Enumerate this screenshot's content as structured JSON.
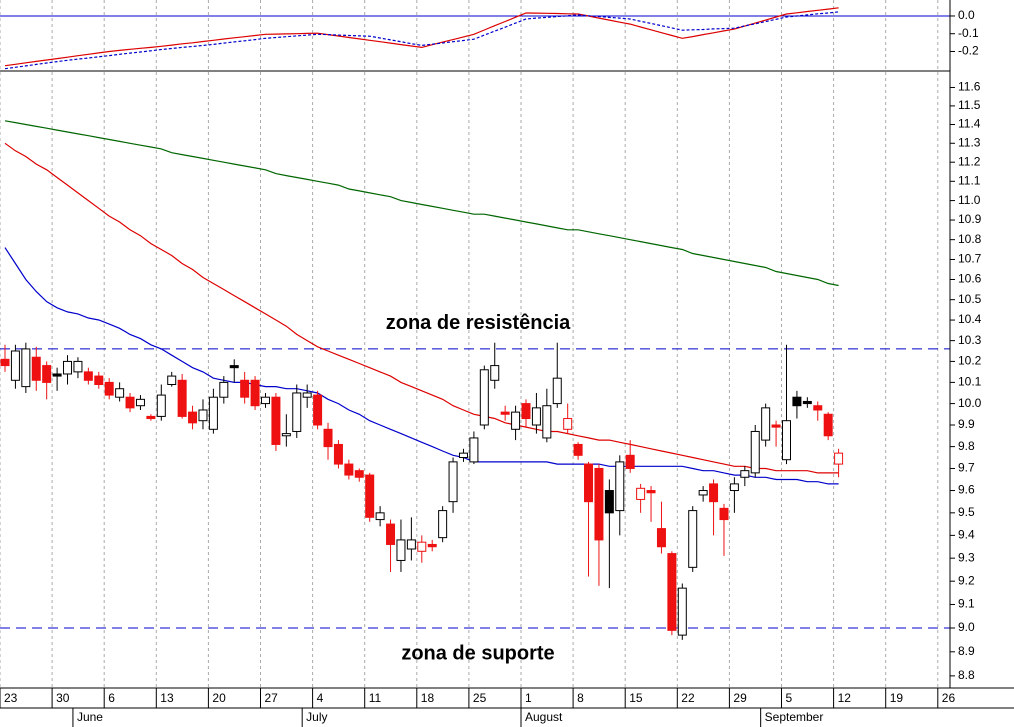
{
  "chart_data": [
    {
      "type": "line",
      "ylim": [
        -0.31,
        0.09
      ],
      "yticks": [
        {
          "value": 0,
          "label": "0.0"
        },
        -0.1,
        -0.2
      ],
      "hlines": [
        {
          "value": 0,
          "color": "#0000cc",
          "dash": false
        }
      ],
      "series": [
        {
          "color": "#dd0000",
          "dash": false,
          "values": [
            -0.28,
            -0.272,
            -0.264,
            -0.256,
            -0.248,
            -0.24,
            -0.232,
            -0.224,
            -0.216,
            -0.208,
            -0.2,
            -0.194,
            -0.188,
            -0.182,
            -0.177,
            -0.171,
            -0.164,
            -0.157,
            -0.151,
            -0.144,
            -0.137,
            -0.13,
            -0.123,
            -0.117,
            -0.11,
            -0.103,
            -0.102,
            -0.101,
            -0.1,
            -0.098,
            -0.097,
            -0.105,
            -0.113,
            -0.121,
            -0.129,
            -0.137,
            -0.145,
            -0.153,
            -0.161,
            -0.169,
            -0.177,
            -0.162,
            -0.147,
            -0.133,
            -0.118,
            -0.103,
            -0.079,
            -0.055,
            -0.031,
            -0.007,
            0.017,
            0.016,
            0.015,
            0.014,
            0.012,
            0.011,
            0.0,
            -0.012,
            -0.023,
            -0.035,
            -0.046,
            -0.062,
            -0.078,
            -0.094,
            -0.11,
            -0.126,
            -0.116,
            -0.105,
            -0.095,
            -0.084,
            -0.074,
            -0.057,
            -0.04,
            -0.023,
            -0.006,
            0.011,
            0.018,
            0.025,
            0.032,
            0.039,
            0.046,
            null,
            null,
            null,
            null,
            null,
            null,
            null,
            null,
            null,
            null
          ]
        },
        {
          "color": "#0000cc",
          "dash": true,
          "values": [
            -0.297,
            -0.289,
            -0.281,
            -0.273,
            -0.265,
            -0.257,
            -0.25,
            -0.243,
            -0.237,
            -0.23,
            -0.223,
            -0.216,
            -0.209,
            -0.203,
            -0.196,
            -0.189,
            -0.183,
            -0.177,
            -0.172,
            -0.166,
            -0.16,
            -0.153,
            -0.146,
            -0.14,
            -0.133,
            -0.126,
            -0.121,
            -0.117,
            -0.112,
            -0.108,
            -0.103,
            -0.105,
            -0.108,
            -0.11,
            -0.112,
            -0.114,
            -0.124,
            -0.135,
            -0.145,
            -0.156,
            -0.166,
            -0.159,
            -0.152,
            -0.145,
            -0.138,
            -0.131,
            -0.108,
            -0.085,
            -0.063,
            -0.04,
            -0.017,
            -0.012,
            -0.008,
            -0.003,
            0.001,
            0.006,
            0.001,
            -0.003,
            -0.008,
            -0.012,
            -0.017,
            -0.03,
            -0.042,
            -0.055,
            -0.067,
            -0.08,
            -0.078,
            -0.076,
            -0.073,
            -0.071,
            -0.069,
            -0.056,
            -0.044,
            -0.031,
            -0.019,
            -0.006,
            0,
            0.006,
            0.012,
            0.017,
            0.023,
            null,
            null,
            null,
            null,
            null,
            null,
            null,
            null,
            null,
            null
          ]
        }
      ]
    },
    {
      "type": "candlestick",
      "log_scale": true,
      "grid": true,
      "ylim": [
        8.75,
        11.69
      ],
      "yticks": [
        8.8,
        8.9,
        {
          "value": 9,
          "label": "9.0"
        },
        9.1,
        9.2,
        9.3,
        9.4,
        9.5,
        9.6,
        9.7,
        9.8,
        9.9,
        {
          "value": 10,
          "label": "10.0"
        },
        10.1,
        10.2,
        10.3,
        10.4,
        10.5,
        10.6,
        10.7,
        10.8,
        10.9,
        {
          "value": 11,
          "label": "11.0"
        },
        11.1,
        11.2,
        11.3,
        11.4,
        11.5,
        11.6
      ],
      "categories": [
        "23",
        null,
        null,
        null,
        null,
        "30",
        null,
        null,
        null,
        null,
        "6",
        null,
        null,
        null,
        null,
        "13",
        null,
        null,
        null,
        null,
        "20",
        null,
        null,
        null,
        null,
        "27",
        null,
        null,
        null,
        null,
        "4",
        null,
        null,
        null,
        null,
        "11",
        null,
        null,
        null,
        null,
        "18",
        null,
        null,
        null,
        null,
        "25",
        null,
        null,
        null,
        null,
        "1",
        null,
        null,
        null,
        null,
        "8",
        null,
        null,
        null,
        null,
        "15",
        null,
        null,
        null,
        null,
        "22",
        null,
        null,
        null,
        null,
        "29",
        null,
        null,
        null,
        null,
        "5",
        null,
        null,
        null,
        null,
        "12",
        null,
        null,
        null,
        null,
        "19",
        null,
        null,
        null,
        null,
        "26"
      ],
      "months": [
        null,
        null,
        null,
        null,
        null,
        null,
        null,
        "June",
        null,
        null,
        null,
        null,
        null,
        null,
        null,
        null,
        null,
        null,
        null,
        null,
        null,
        null,
        null,
        null,
        null,
        null,
        null,
        null,
        null,
        "July",
        null,
        null,
        null,
        null,
        null,
        null,
        null,
        null,
        null,
        null,
        null,
        null,
        null,
        null,
        null,
        null,
        null,
        null,
        null,
        null,
        "August",
        null,
        null,
        null,
        null,
        null,
        null,
        null,
        null,
        null,
        null,
        null,
        null,
        null,
        null,
        null,
        null,
        null,
        null,
        null,
        null,
        null,
        null,
        "September",
        null,
        null,
        null,
        null,
        null,
        null,
        null,
        null,
        null,
        null,
        null,
        null,
        null,
        null,
        null,
        null,
        null
      ],
      "open": [
        10.21,
        10.11,
        10.08,
        10.22,
        10.18,
        10.14,
        10.14,
        10.15,
        10.15,
        10.13,
        10.1,
        10.03,
        10.03,
        9.99,
        9.94,
        9.94,
        10.09,
        10.11,
        9.96,
        9.92,
        9.88,
        10.03,
        10.18,
        10.11,
        10.11,
        10.0,
        10.03,
        9.85,
        9.87,
        10.03,
        10.04,
        9.88,
        9.81,
        9.72,
        9.69,
        9.67,
        9.47,
        9.45,
        9.29,
        9.34,
        9.33,
        9.36,
        9.39,
        9.55,
        9.75,
        9.73,
        9.9,
        10.11,
        9.96,
        9.88,
        10.0,
        9.9,
        9.84,
        10.0,
        9.88,
        9.81,
        9.72,
        9.7,
        9.6,
        9.51,
        9.76,
        9.56,
        9.6,
        9.43,
        9.32,
        8.97,
        9.26,
        9.58,
        9.63,
        9.52,
        9.6,
        9.66,
        9.68,
        9.83,
        9.9,
        9.74,
        10.03,
        10.01,
        9.99,
        9.95,
        9.72,
        null,
        null,
        null,
        null,
        null,
        null,
        null,
        null,
        null,
        null
      ],
      "high": [
        10.28,
        10.28,
        10.29,
        10.27,
        10.2,
        10.17,
        10.23,
        10.22,
        10.17,
        10.15,
        10.12,
        10.1,
        10.05,
        10.04,
        9.95,
        10.09,
        10.15,
        10.14,
        9.99,
        10.02,
        10.07,
        10.13,
        10.21,
        10.15,
        10.13,
        10.05,
        10.05,
        9.95,
        10.09,
        10.09,
        10.06,
        9.91,
        9.83,
        9.74,
        9.7,
        9.68,
        9.53,
        9.47,
        9.47,
        9.48,
        9.4,
        9.38,
        9.53,
        9.75,
        9.79,
        9.87,
        10.18,
        10.29,
        9.99,
        9.99,
        10.02,
        10.05,
        10.07,
        10.29,
        10.0,
        9.82,
        9.73,
        9.72,
        9.65,
        9.76,
        9.83,
        9.63,
        9.62,
        9.55,
        9.33,
        9.19,
        9.53,
        9.62,
        9.65,
        9.54,
        9.66,
        9.71,
        9.9,
        10.0,
        9.92,
        10.28,
        10.06,
        10.03,
        10.01,
        9.96,
        9.79,
        null,
        null,
        null,
        null,
        null,
        null,
        null,
        null,
        null,
        null
      ],
      "low": [
        10.15,
        10.07,
        10.05,
        10.06,
        10.02,
        10.06,
        10.09,
        10.12,
        10.09,
        10.07,
        10.02,
        10.01,
        9.96,
        9.97,
        9.92,
        9.92,
        10.08,
        9.93,
        9.88,
        9.88,
        9.86,
        10.0,
        10.1,
        10.0,
        9.97,
        9.98,
        9.78,
        9.8,
        9.84,
        9.98,
        9.88,
        9.74,
        9.7,
        9.65,
        9.64,
        9.46,
        9.44,
        9.24,
        9.24,
        9.29,
        9.28,
        9.33,
        9.37,
        9.5,
        9.73,
        9.72,
        9.88,
        10.07,
        9.92,
        9.83,
        9.89,
        9.86,
        9.82,
        9.98,
        9.86,
        9.74,
        9.22,
        9.18,
        9.17,
        9.4,
        9.68,
        9.5,
        9.46,
        9.32,
        8.97,
        8.95,
        9.24,
        9.55,
        9.4,
        9.31,
        9.5,
        9.62,
        9.66,
        9.8,
        9.8,
        9.72,
        9.93,
        9.98,
        9.92,
        9.83,
        9.66,
        null,
        null,
        null,
        null,
        null,
        null,
        null,
        null,
        null,
        null
      ],
      "close": [
        10.18,
        10.25,
        10.26,
        10.11,
        10.1,
        10.13,
        10.2,
        10.2,
        10.11,
        10.09,
        10.04,
        10.07,
        9.98,
        10.02,
        9.93,
        10.04,
        10.13,
        9.94,
        9.91,
        9.97,
        10.03,
        10.1,
        10.17,
        10.03,
        9.99,
        10.03,
        9.81,
        9.86,
        10.05,
        10.05,
        9.9,
        9.8,
        9.72,
        9.67,
        9.66,
        9.48,
        9.5,
        9.36,
        9.38,
        9.38,
        9.37,
        9.35,
        9.51,
        9.73,
        9.77,
        9.84,
        10.16,
        10.18,
        9.95,
        9.96,
        9.93,
        9.98,
        9.99,
        10.12,
        9.93,
        9.76,
        9.55,
        9.38,
        9.5,
        9.73,
        9.7,
        9.61,
        9.59,
        9.35,
        8.99,
        9.17,
        9.51,
        9.6,
        9.55,
        9.47,
        9.63,
        9.69,
        9.87,
        9.98,
        9.89,
        9.92,
        9.99,
        10.0,
        9.97,
        9.85,
        9.77,
        null,
        null,
        null,
        null,
        null,
        null,
        null,
        null,
        null,
        null
      ],
      "down_color": "#ee1111",
      "up_color": "#000000",
      "hollow_fill": "#ffffff",
      "series": [
        {
          "color": "#0000cc",
          "values": [
            10.76,
            10.68,
            10.6,
            10.54,
            10.49,
            10.46,
            10.44,
            10.43,
            10.41,
            10.4,
            10.38,
            10.36,
            10.33,
            10.31,
            10.28,
            10.26,
            10.23,
            10.2,
            10.17,
            10.15,
            10.12,
            10.11,
            10.1,
            10.1,
            10.09,
            10.08,
            10.08,
            10.07,
            10.07,
            10.06,
            10.05,
            10.02,
            10.0,
            9.97,
            9.95,
            9.92,
            9.9,
            9.88,
            9.86,
            9.84,
            9.82,
            9.8,
            9.78,
            9.76,
            9.75,
            9.73,
            9.73,
            9.73,
            9.73,
            9.73,
            9.73,
            9.73,
            9.73,
            9.72,
            9.72,
            9.72,
            9.72,
            9.72,
            9.71,
            9.71,
            9.71,
            9.71,
            9.71,
            9.71,
            9.71,
            9.71,
            9.7,
            9.69,
            9.69,
            9.68,
            9.67,
            9.67,
            9.66,
            9.66,
            9.65,
            9.65,
            9.65,
            9.64,
            9.64,
            9.63,
            9.63,
            null,
            null,
            null,
            null,
            null,
            null,
            null,
            null,
            null,
            null
          ]
        },
        {
          "color": "#dd0000",
          "values": [
            11.3,
            11.26,
            11.23,
            11.19,
            11.16,
            11.12,
            11.08,
            11.04,
            11.0,
            10.96,
            10.92,
            10.89,
            10.85,
            10.82,
            10.78,
            10.75,
            10.72,
            10.68,
            10.65,
            10.61,
            10.58,
            10.55,
            10.52,
            10.49,
            10.46,
            10.43,
            10.4,
            10.37,
            10.33,
            10.3,
            10.27,
            10.25,
            10.23,
            10.21,
            10.19,
            10.17,
            10.15,
            10.13,
            10.1,
            10.08,
            10.06,
            10.04,
            10.02,
            9.99,
            9.97,
            9.95,
            9.94,
            9.93,
            9.91,
            9.9,
            9.89,
            9.88,
            9.87,
            9.87,
            9.86,
            9.85,
            9.84,
            9.83,
            9.83,
            9.82,
            9.81,
            9.8,
            9.79,
            9.78,
            9.77,
            9.76,
            9.75,
            9.74,
            9.73,
            9.72,
            9.71,
            9.71,
            9.7,
            9.7,
            9.69,
            9.69,
            9.69,
            9.69,
            9.68,
            9.68,
            9.68,
            null,
            null,
            null,
            null,
            null,
            null,
            null,
            null,
            null,
            null
          ]
        },
        {
          "color": "#006600",
          "values": [
            11.42,
            11.41,
            11.4,
            11.39,
            11.38,
            11.37,
            11.36,
            11.35,
            11.34,
            11.33,
            11.32,
            11.31,
            11.3,
            11.29,
            11.28,
            11.27,
            11.25,
            11.24,
            11.23,
            11.22,
            11.21,
            11.2,
            11.19,
            11.18,
            11.17,
            11.16,
            11.14,
            11.13,
            11.12,
            11.11,
            11.1,
            11.09,
            11.08,
            11.06,
            11.05,
            11.04,
            11.03,
            11.02,
            11.0,
            10.99,
            10.98,
            10.97,
            10.96,
            10.95,
            10.94,
            10.93,
            10.93,
            10.92,
            10.91,
            10.9,
            10.89,
            10.88,
            10.87,
            10.86,
            10.85,
            10.85,
            10.84,
            10.83,
            10.82,
            10.81,
            10.8,
            10.79,
            10.78,
            10.77,
            10.76,
            10.75,
            10.73,
            10.72,
            10.71,
            10.7,
            10.69,
            10.68,
            10.67,
            10.66,
            10.64,
            10.63,
            10.62,
            10.61,
            10.6,
            10.58,
            10.57,
            null,
            null,
            null,
            null,
            null,
            null,
            null,
            null,
            null,
            null
          ]
        }
      ],
      "hlines": [
        {
          "value": 10.26,
          "color": "#0000cc",
          "dash": true
        },
        {
          "value": 9.0,
          "color": "#0000cc",
          "dash": true
        }
      ],
      "annotations": [
        "zona de resistência",
        "zona de suporte"
      ]
    }
  ]
}
